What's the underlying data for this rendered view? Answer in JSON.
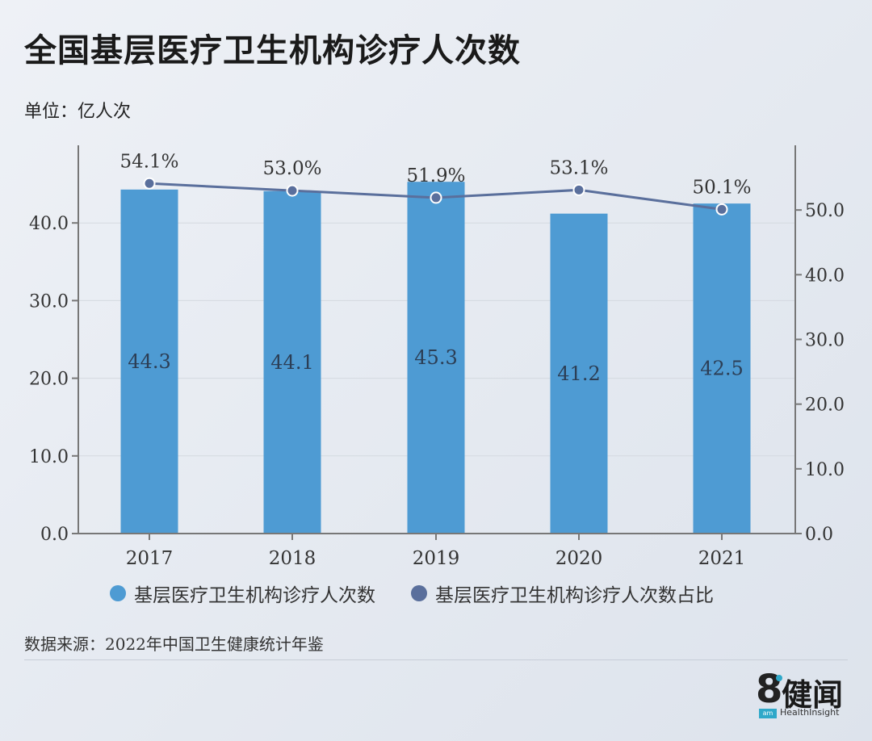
{
  "title": "全国基层医疗卫生机构诊疗人次数",
  "unit_label": "单位：亿人次",
  "source": "数据来源：2022年中国卫生健康统计年鉴",
  "logo": {
    "digit": "8",
    "badge": "am",
    "cn": "健闻",
    "en": "HealthInsight"
  },
  "colors": {
    "bar": "#4e9bd3",
    "line": "#5a6f9c",
    "axis": "#777777",
    "grid": "#d4d9e0"
  },
  "chart_data": {
    "type": "bar",
    "categories": [
      "2017",
      "2018",
      "2019",
      "2020",
      "2021"
    ],
    "series": [
      {
        "name": "基层医疗卫生机构诊疗人次数",
        "type": "bar",
        "axis": "left",
        "values": [
          44.3,
          44.1,
          45.3,
          41.2,
          42.5
        ],
        "labels": [
          "44.3",
          "44.1",
          "45.3",
          "41.2",
          "42.5"
        ]
      },
      {
        "name": "基层医疗卫生机构诊疗人次数占比",
        "type": "line",
        "axis": "right",
        "values": [
          54.1,
          53.0,
          51.9,
          53.1,
          50.1
        ],
        "labels": [
          "54.1%",
          "53.0%",
          "51.9%",
          "53.1%",
          "50.1%"
        ]
      }
    ],
    "y_left": {
      "range": [
        0,
        50
      ],
      "ticks": [
        "0.0",
        "10.0",
        "20.0",
        "30.0",
        "40.0"
      ]
    },
    "y_right": {
      "range": [
        0,
        60
      ],
      "ticks": [
        "0.0",
        "10.0",
        "20.0",
        "30.0",
        "40.0",
        "50.0"
      ]
    },
    "grid": true,
    "legend_position": "bottom"
  }
}
